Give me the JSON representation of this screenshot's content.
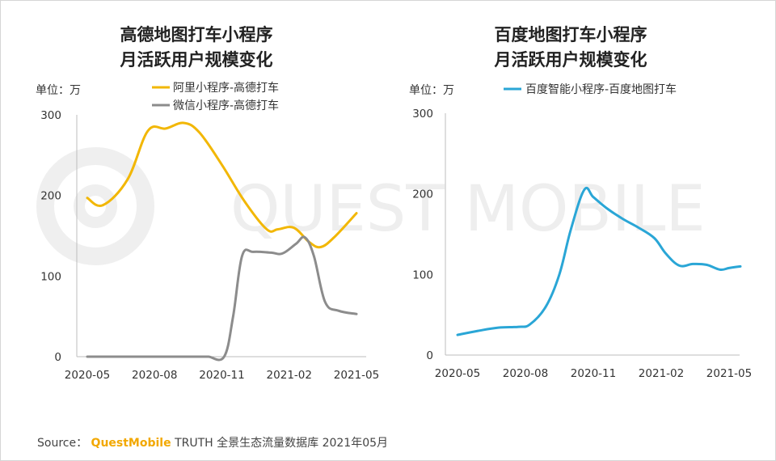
{
  "chart_data": [
    {
      "type": "line",
      "title_lines": [
        "高德地图打车小程序",
        "月活跃用户规模变化"
      ],
      "unit_label": "单位：万",
      "ylim": [
        0,
        300
      ],
      "yticks": [
        0,
        100,
        200,
        300
      ],
      "xlim": [
        0,
        12
      ],
      "xticks": [
        {
          "x": 0,
          "label": "2020-05"
        },
        {
          "x": 3,
          "label": "2020-08"
        },
        {
          "x": 6,
          "label": "2020-11"
        },
        {
          "x": 9,
          "label": "2021-02"
        },
        {
          "x": 12,
          "label": "2021-05"
        }
      ],
      "legend_position": "top",
      "series": [
        {
          "name": "阿里小程序-高德打车",
          "color": "#f2b705",
          "points": [
            [
              0,
              197
            ],
            [
              0.7,
              188
            ],
            [
              1.8,
              220
            ],
            [
              2.7,
              280
            ],
            [
              3.5,
              283
            ],
            [
              4.3,
              290
            ],
            [
              5.0,
              278
            ],
            [
              6.0,
              238
            ],
            [
              7.0,
              193
            ],
            [
              8.0,
              158
            ],
            [
              8.5,
              158
            ],
            [
              9.2,
              160
            ],
            [
              9.9,
              142
            ],
            [
              10.4,
              136
            ],
            [
              11.0,
              148
            ],
            [
              12.0,
              178
            ]
          ]
        },
        {
          "name": "微信小程序-高德打车",
          "color": "#8c8c8c",
          "points": [
            [
              0,
              0
            ],
            [
              4.5,
              0
            ],
            [
              5.0,
              0
            ],
            [
              5.4,
              0
            ],
            [
              6.1,
              0
            ],
            [
              6.5,
              50
            ],
            [
              6.9,
              125
            ],
            [
              7.4,
              130
            ],
            [
              8.2,
              129
            ],
            [
              8.7,
              128
            ],
            [
              9.3,
              140
            ],
            [
              9.7,
              148
            ],
            [
              10.1,
              125
            ],
            [
              10.6,
              68
            ],
            [
              11.2,
              57
            ],
            [
              12.0,
              53
            ]
          ]
        }
      ]
    },
    {
      "type": "line",
      "title_lines": [
        "百度地图打车小程序",
        "月活跃用户规模变化"
      ],
      "unit_label": "单位：万",
      "ylim": [
        0,
        300
      ],
      "yticks": [
        0,
        100,
        200,
        300
      ],
      "xlim": [
        0,
        12
      ],
      "xticks": [
        {
          "x": 0,
          "label": "2020-05"
        },
        {
          "x": 3,
          "label": "2020-08"
        },
        {
          "x": 6,
          "label": "2020-11"
        },
        {
          "x": 9,
          "label": "2021-02"
        },
        {
          "x": 12,
          "label": "2021-05"
        }
      ],
      "legend_position": "top",
      "series": [
        {
          "name": "百度智能小程序-百度地图打车",
          "color": "#2aa6d6",
          "points": [
            [
              0,
              25
            ],
            [
              0.9,
              30
            ],
            [
              1.8,
              34
            ],
            [
              2.7,
              35
            ],
            [
              3.2,
              38
            ],
            [
              3.9,
              60
            ],
            [
              4.5,
              100
            ],
            [
              5.0,
              155
            ],
            [
              5.6,
              205
            ],
            [
              6.0,
              196
            ],
            [
              6.6,
              182
            ],
            [
              7.3,
              169
            ],
            [
              8.0,
              158
            ],
            [
              8.7,
              145
            ],
            [
              9.2,
              126
            ],
            [
              9.8,
              111
            ],
            [
              10.4,
              113
            ],
            [
              11.0,
              112
            ],
            [
              11.6,
              106
            ],
            [
              12.0,
              108
            ],
            [
              12.5,
              110
            ]
          ]
        }
      ]
    }
  ],
  "watermark": "QUEST MOBILE",
  "source": {
    "prefix": "Source：",
    "brand": "QuestMobile",
    "suffix": "TRUTH 全景生态流量数据库 2021年05月"
  }
}
